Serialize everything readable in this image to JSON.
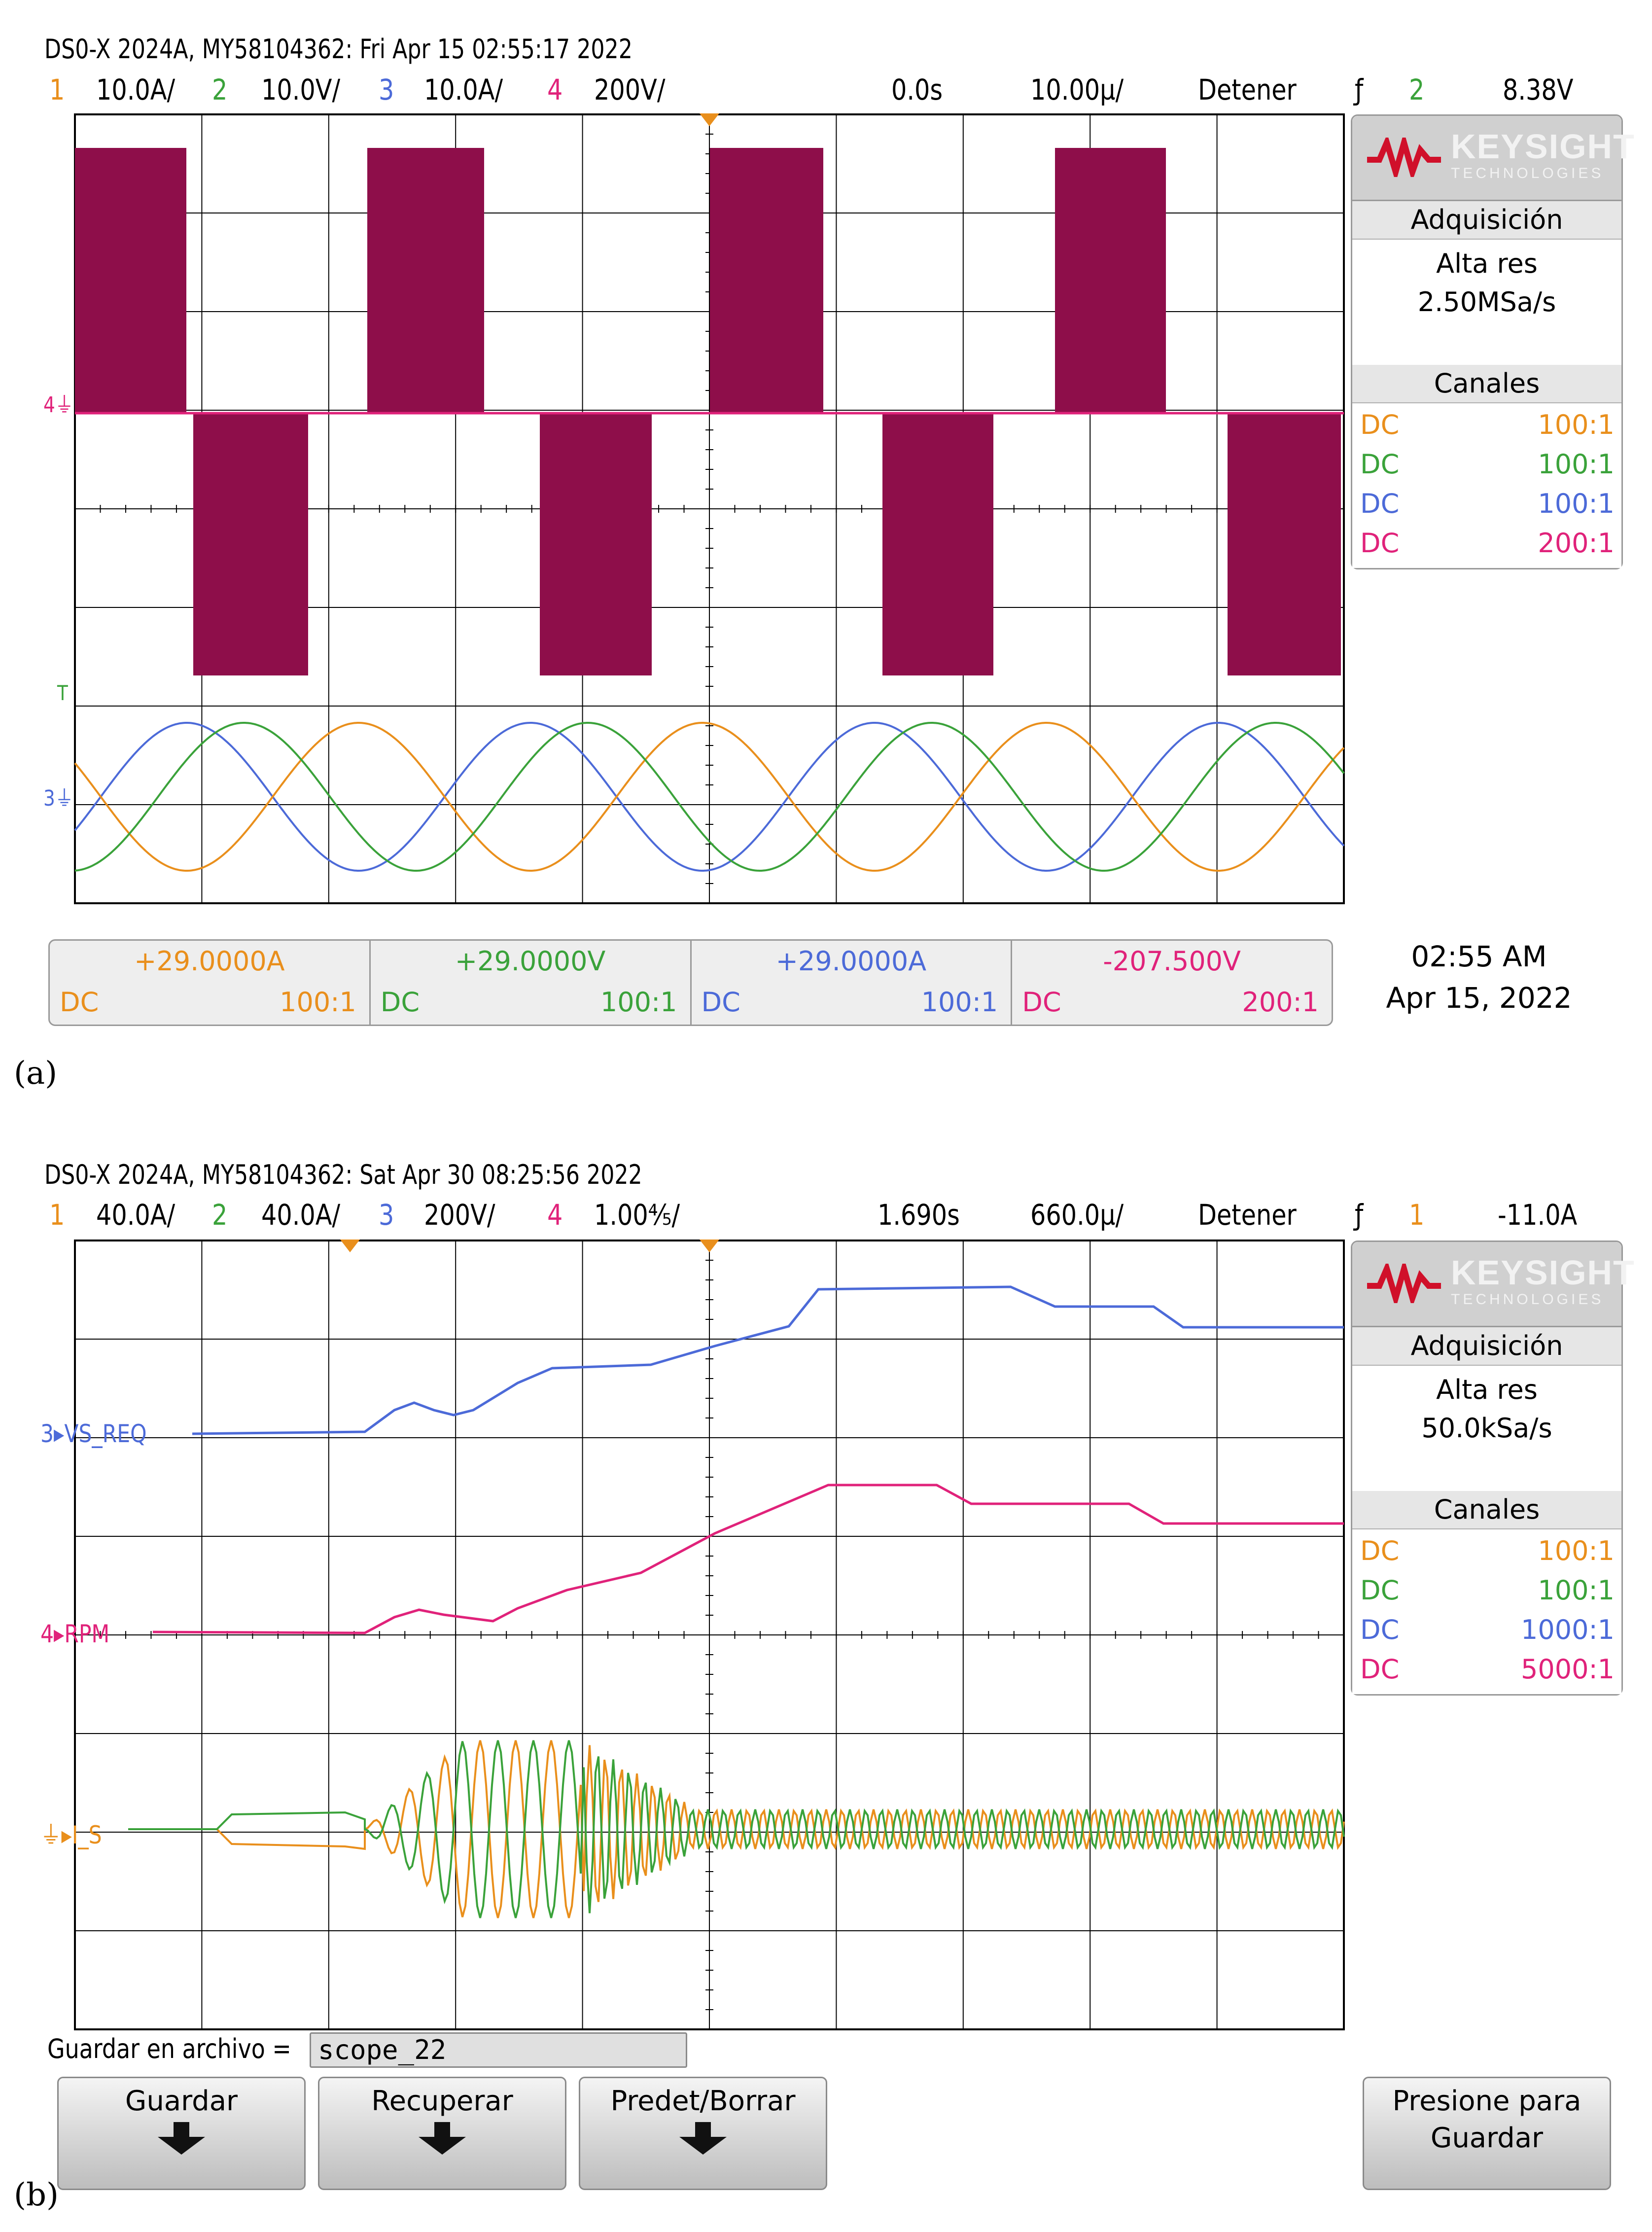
{
  "panel_a": {
    "caption": "(a)",
    "header": "DS0-X 2024A, MY58104362: Fri Apr 15 02:55:17 2022",
    "channels": [
      {
        "num": "1",
        "scale": "10.0A/"
      },
      {
        "num": "2",
        "scale": "10.0V/"
      },
      {
        "num": "3",
        "scale": "10.0A/"
      },
      {
        "num": "4",
        "scale": "200V/"
      }
    ],
    "time_offset": "0.0s",
    "time_scale": "10.00µ/",
    "run_state": "Detener",
    "trigger_channel": "2",
    "trigger_level": "8.38V",
    "sidebar": {
      "brand": "KEYSIGHT",
      "brand_sub": "TECHNOLOGIES",
      "acq_title": "Adquisición",
      "acq_mode": "Alta res",
      "acq_rate": "2.50MSa/s",
      "ch_title": "Canales",
      "ch_rows": [
        {
          "cpl": "DC",
          "probe": "100:1"
        },
        {
          "cpl": "DC",
          "probe": "100:1"
        },
        {
          "cpl": "DC",
          "probe": "100:1"
        },
        {
          "cpl": "DC",
          "probe": "200:1"
        }
      ]
    },
    "measurements": [
      {
        "value": "+29.0000A",
        "cpl": "DC",
        "probe": "100:1"
      },
      {
        "value": "+29.0000V",
        "cpl": "DC",
        "probe": "100:1"
      },
      {
        "value": "+29.0000A",
        "cpl": "DC",
        "probe": "100:1"
      },
      {
        "value": "-207.500V",
        "cpl": "DC",
        "probe": "200:1"
      }
    ],
    "clock_time": "02:55 AM",
    "clock_date": "Apr 15, 2022",
    "markers": {
      "ch4": "4",
      "trig": "T",
      "ch3": "3"
    }
  },
  "panel_b": {
    "caption": "(b)",
    "header": "DS0-X 2024A, MY58104362: Sat Apr 30 08:25:56 2022",
    "channels": [
      {
        "num": "1",
        "scale": "40.0A/"
      },
      {
        "num": "2",
        "scale": "40.0A/"
      },
      {
        "num": "3",
        "scale": "200V/"
      },
      {
        "num": "4",
        "scale": "1.00⅘/"
      }
    ],
    "time_offset": "1.690s",
    "time_scale": "660.0µ/",
    "run_state": "Detener",
    "trigger_channel": "1",
    "trigger_level": "-11.0A",
    "sidebar": {
      "brand": "KEYSIGHT",
      "brand_sub": "TECHNOLOGIES",
      "acq_title": "Adquisición",
      "acq_mode": "Alta res",
      "acq_rate": "50.0kSa/s",
      "ch_title": "Canales",
      "ch_rows": [
        {
          "cpl": "DC",
          "probe": "100:1"
        },
        {
          "cpl": "DC",
          "probe": "100:1"
        },
        {
          "cpl": "DC",
          "probe": "1000:1"
        },
        {
          "cpl": "DC",
          "probe": "5000:1"
        }
      ]
    },
    "labels": {
      "vs_req": "VS_REQ",
      "rpm": "RPM",
      "i_s": "I_S",
      "ch3": "3",
      "ch4": "4"
    },
    "save_label": "Guardar en archivo =",
    "save_filename": "scope_22",
    "buttons": {
      "guardar": "Guardar",
      "recuperar": "Recuperar",
      "predet": "Predet/Borrar",
      "presione_1": "Presione para",
      "presione_2": "Guardar"
    }
  },
  "colors": {
    "ch1": "#e98f1c",
    "ch2": "#3aa23a",
    "ch3": "#4c6ad8",
    "ch4": "#e0227a",
    "maroon": "#8e0e4a"
  }
}
